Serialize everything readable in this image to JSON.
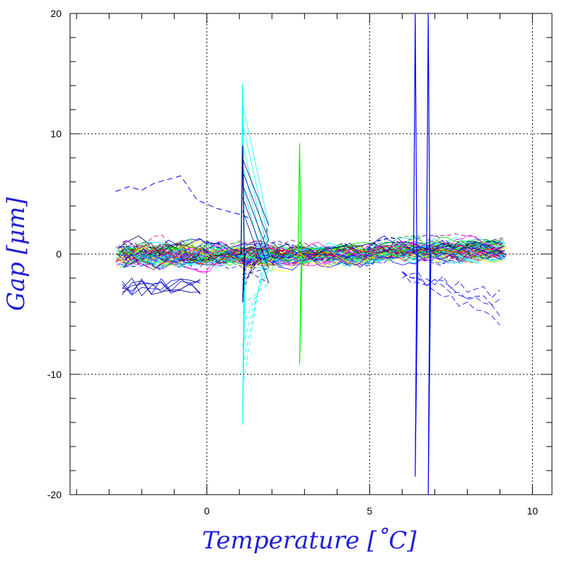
{
  "chart_data": {
    "type": "line",
    "title": "",
    "xlabel": "Temperature [˚C]",
    "ylabel": "Gap [μm]",
    "xlim": [
      -4.2,
      10.6
    ],
    "ylim": [
      -20,
      20
    ],
    "x_ticks": [
      0,
      5,
      10
    ],
    "y_ticks": [
      -20,
      -10,
      0,
      10,
      20
    ],
    "x_tick_labels": [
      "0",
      "5",
      "10"
    ],
    "y_tick_labels": [
      "-20",
      "-10",
      "0",
      "10",
      "20"
    ],
    "grid": true,
    "legend": "none",
    "series_colors": [
      "#ff0000",
      "#00c8ff",
      "#00ff00",
      "#0000ff",
      "#000080",
      "#ffff00",
      "#ff00ff",
      "#00ffff",
      "#800080",
      "#008000"
    ],
    "trend": {
      "description": "Many overlapping gap traces clustered around 0 μm",
      "x_range": [
        -2.8,
        9.2
      ],
      "typical_band": [
        -2.5,
        2.0
      ]
    },
    "spikes": [
      {
        "x": 1.1,
        "y_max": 14.2,
        "y_min": -14.2,
        "color": "#00ffff"
      },
      {
        "x": 1.1,
        "y_max": 9.0,
        "y_min": -4.0,
        "color": "#000080"
      },
      {
        "x": 2.85,
        "y_max": 9.2,
        "y_min": -9.2,
        "color": "#00ff00"
      },
      {
        "x": 6.4,
        "y_max": 20,
        "y_min": -18.5,
        "color": "#0000ff"
      },
      {
        "x": 6.8,
        "y_max": 20,
        "y_min": -20,
        "color": "#0000ff"
      }
    ],
    "outlier_trace_points": [
      [
        -2.8,
        5.2
      ],
      [
        -2.4,
        5.6
      ],
      [
        -2.0,
        5.3
      ],
      [
        -1.6,
        5.9
      ],
      [
        -1.2,
        6.2
      ],
      [
        -0.8,
        6.5
      ],
      [
        -0.3,
        4.5
      ],
      [
        0.3,
        3.8
      ],
      [
        1.0,
        3.3
      ],
      [
        1.3,
        3.0
      ]
    ]
  }
}
